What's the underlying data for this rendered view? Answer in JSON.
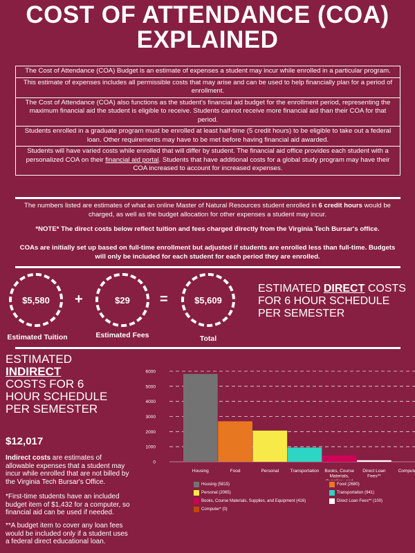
{
  "title_line1": "COST OF ATTENDANCE (COA)",
  "title_line2": "EXPLAINED",
  "info_rows": [
    "The Cost of Attendance (COA) Budget is an estimate of expenses a student may incur while enrolled in a particular program.",
    "This estimate of expenses includes all permissible costs that may arise and can be used to help financially plan for a period of enrollment.",
    "The Cost of Attendance (COA) also functions as the student's financial aid budget for the enrollment period, representing the maximum financial aid the student is eligible to receive. Students cannot receive more financial aid than their COA for that period.",
    "Students enrolled in a graduate program must be enrolled at least half-time (5 credit hours) to be eligible to take out a federal loan. Other requirements may have to be met before having financial aid awarded."
  ],
  "info_row5": {
    "before": "Students will have varied costs while enrolled that will differ by student. The financial aid office provides each student with a personalized COA on their ",
    "link": "financial aid portal",
    "after": ". Students that have additional costs for a global study program may have their COA increased to account for increased expenses."
  },
  "notes": {
    "n1_before": "The numbers listed are estimates of what an online Master of Natural Resources student enrolled in ",
    "n1_bold": "6 credit hours",
    "n1_after": " would be charged, as well as the budget allocation for other expenses a student may incur.",
    "n2": "*NOTE* The direct costs below reflect tuition and fees charged directly from the Virginia Tech Bursar's office.",
    "n3": "COAs are initially set up based on full-time enrollment but adjusted if students are enrolled less than full-time. Budgets will only be included for each student for each period they are enrolled."
  },
  "direct": {
    "tuition_value": "$5,580",
    "tuition_label": "Estimated Tuition",
    "plus": "+",
    "fees_value": "$29",
    "fees_label": "Estimated Fees",
    "equals": "=",
    "total_value": "$5,609",
    "total_label": "Total",
    "heading_before": "ESTIMATED ",
    "heading_bold": "DIRECT",
    "heading_after": " COSTS FOR 6 HOUR SCHEDULE PER SEMESTER"
  },
  "indirect": {
    "heading_line1": "ESTIMATED",
    "heading_bold": "INDIRECT",
    "heading_rest": "COSTS FOR 6 HOUR SCHEDULE PER SEMESTER",
    "total": "$12,017",
    "para1_bold": "Indirect costs",
    "para1_rest": " are estimates of allowable expenses that a student may incur while enrolled that are not billed by the Virginia Tech Bursar's Office.",
    "para2": "*First-time students have an included budget item of $1,432 for a computer, so financial aid can be used if needed.",
    "para3": "**A budget item to cover any loan fees would be included only if a student uses a federal direct educational loan."
  },
  "chart_data": {
    "type": "bar",
    "categories": [
      "Housing",
      "Food",
      "Personal",
      "Transportation",
      "Books, Course Materials, Supplies, and Equipment",
      "Direct Loan Fees**",
      "Computer*"
    ],
    "values": [
      5815,
      2680,
      2065,
      941,
      416,
      100,
      0
    ],
    "colors": [
      "#737373",
      "#e87722",
      "#f7ea48",
      "#2cd5c4",
      "#ce0058",
      "#ffffff",
      "#c64600"
    ],
    "ylim": [
      0,
      6000
    ],
    "yticks": [
      "0",
      "1000",
      "2000",
      "3000",
      "4000",
      "5000",
      "6000"
    ],
    "legend": [
      "Housing (5815)",
      "Food (2680)",
      "Personal (2065)",
      "Transportation (941)",
      "Books, Course Materials, Supplies, and Equipment (416)",
      "Direct Loan Fees** (100)",
      "Computer* (0)"
    ],
    "legend_placement": "bottom",
    "grid": true
  }
}
